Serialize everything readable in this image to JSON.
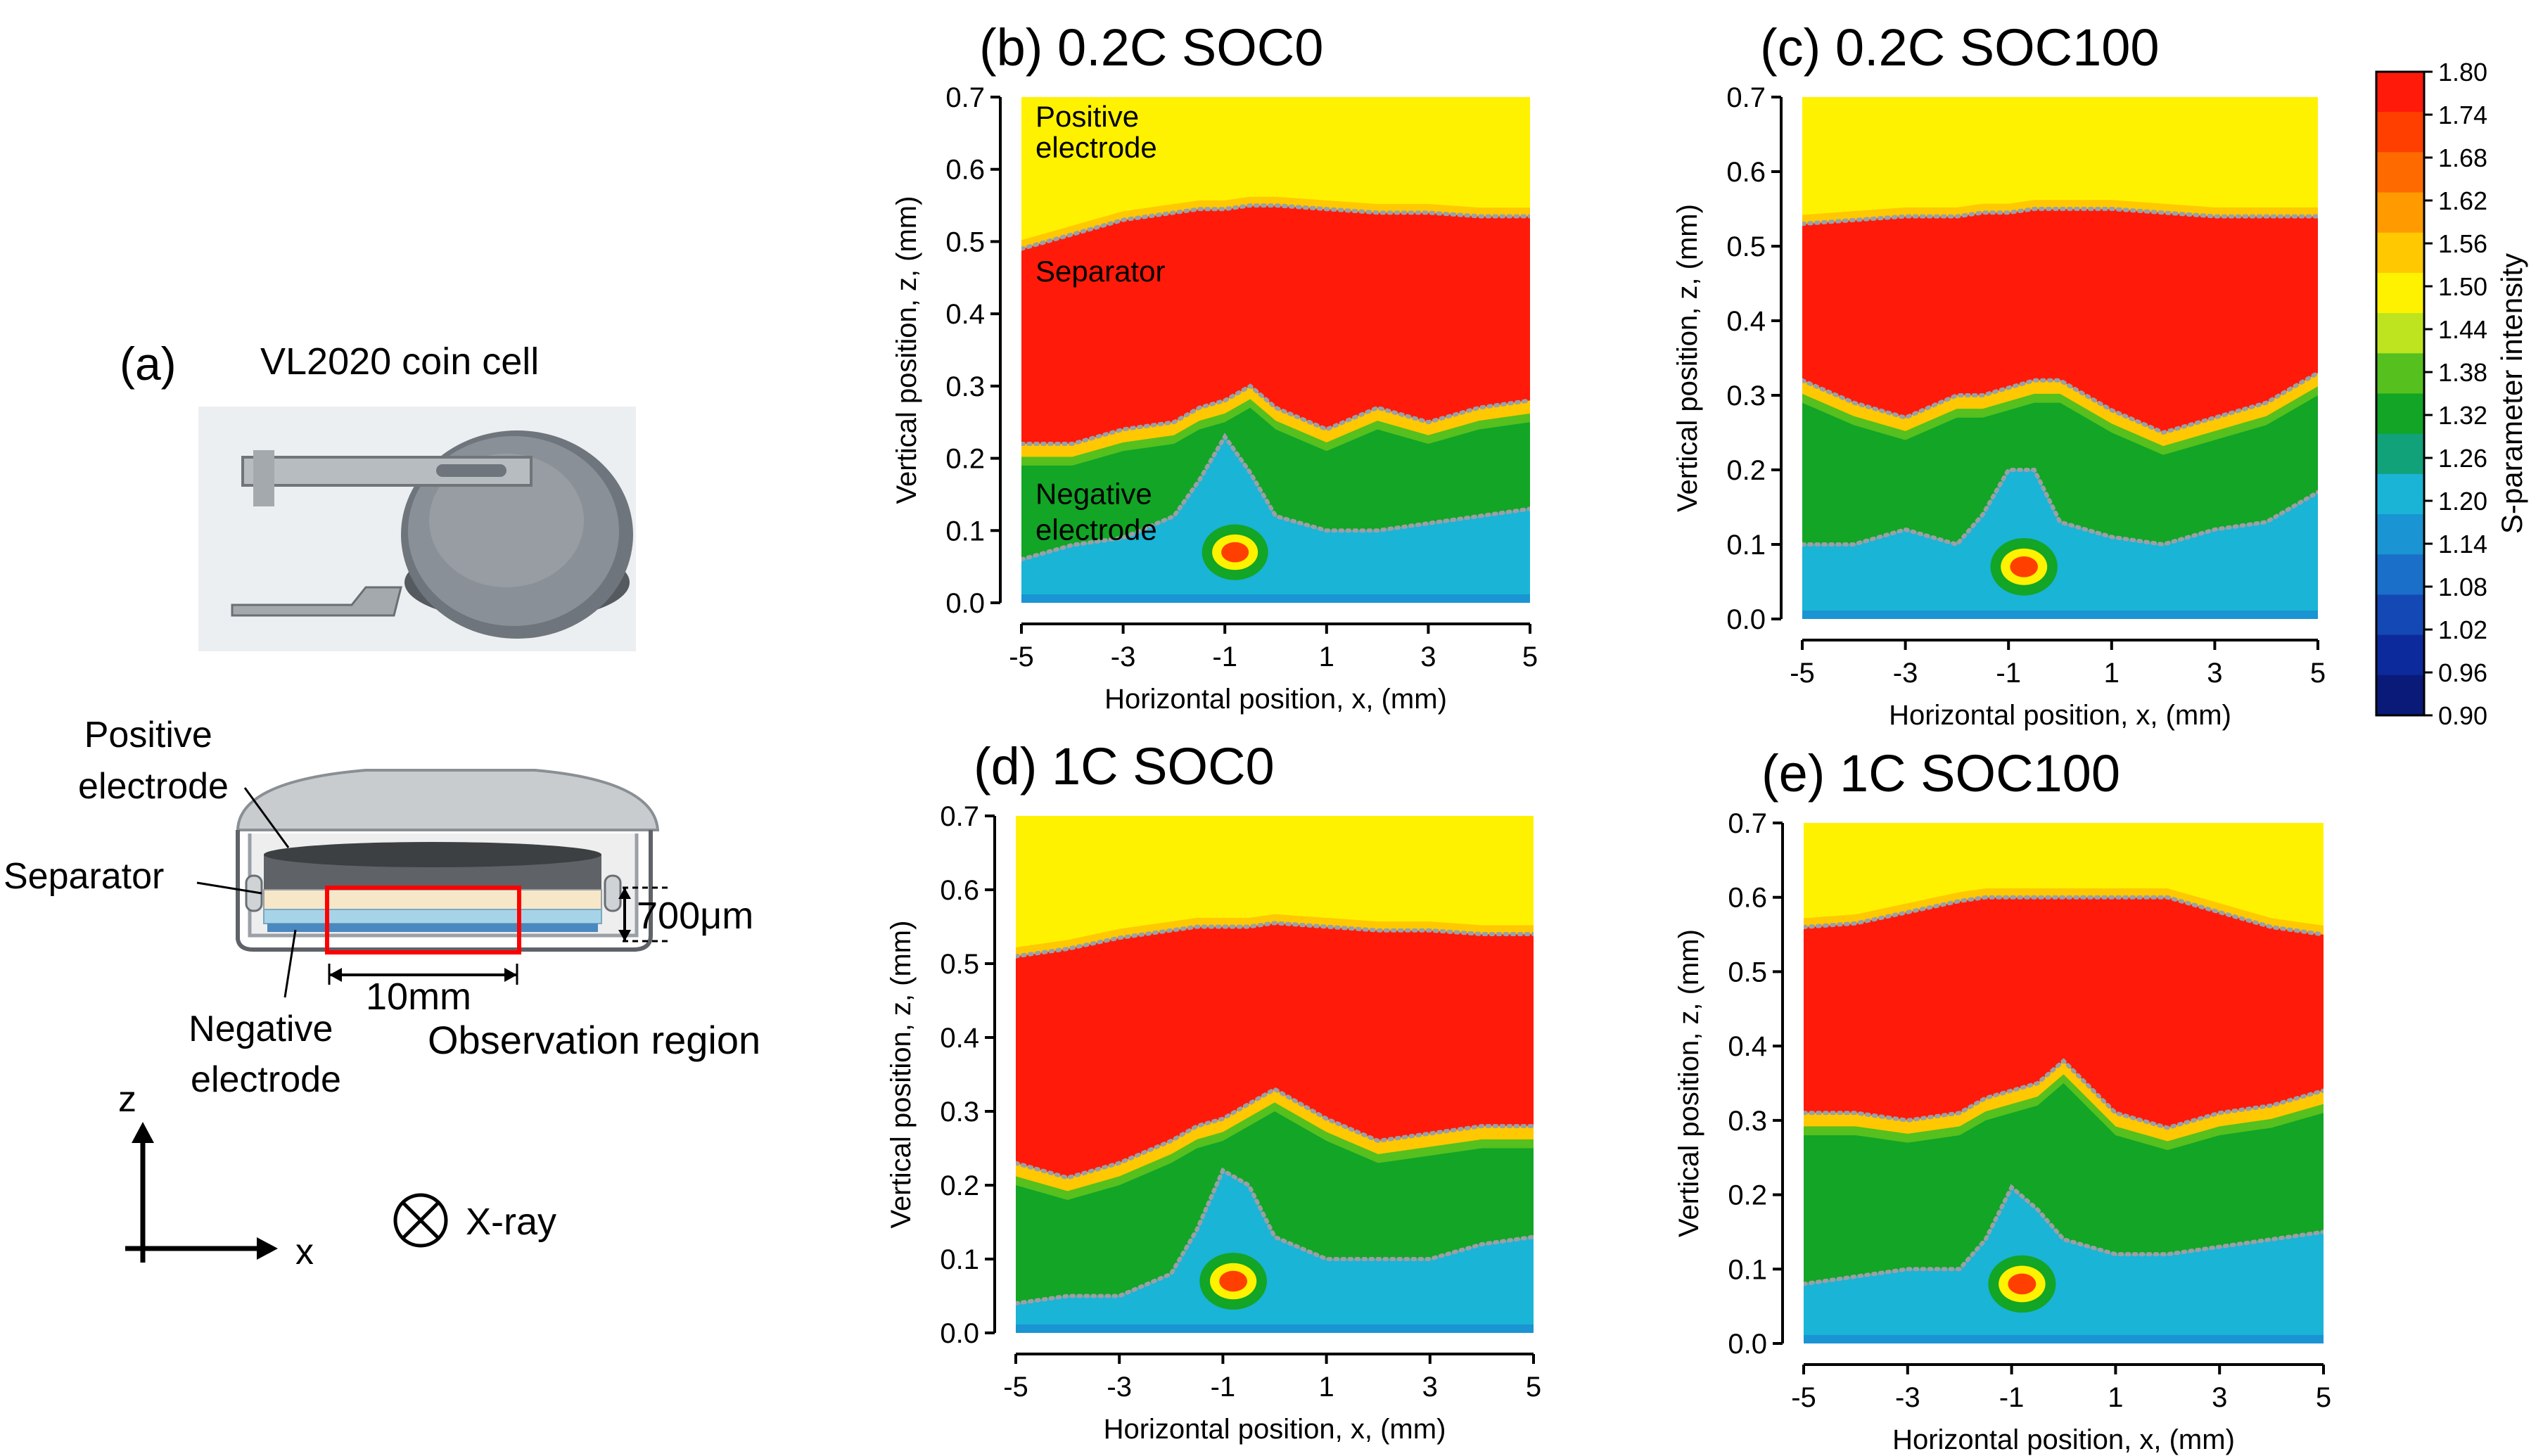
{
  "panel_a": {
    "label": "(a)",
    "title": "VL2020 coin cell",
    "labels": {
      "positive_electrode": [
        "Positive",
        "electrode"
      ],
      "separator": "Separator",
      "negative_electrode": [
        "Negative",
        "electrode"
      ],
      "height": "700μm",
      "width": "10mm",
      "observation_region": "Observation region",
      "axis_z": "z",
      "axis_x": "x",
      "xray": "X-ray"
    },
    "colors": {
      "observation_region": "#ff0000"
    }
  },
  "chart_data": [
    {
      "id": "b",
      "type": "heatmap",
      "title": "(b) 0.2C SOC0",
      "xlabel": "Horizontal position, x, (mm)",
      "ylabel": "Vertical position, z, (mm)",
      "xlim": [
        -5,
        5
      ],
      "ylim": [
        0,
        0.7
      ],
      "xticks": [
        "-5",
        "-3",
        "-1",
        "1",
        "3",
        "5"
      ],
      "yticks": [
        "0.0",
        "0.1",
        "0.2",
        "0.3",
        "0.4",
        "0.5",
        "0.6",
        "0.7"
      ],
      "x": [
        -5,
        -4,
        -3,
        -2,
        -1.5,
        -1,
        -0.5,
        0,
        1,
        2,
        3,
        4,
        5
      ],
      "boundary_top": [
        0.49,
        0.51,
        0.53,
        0.54,
        0.545,
        0.545,
        0.55,
        0.55,
        0.545,
        0.54,
        0.54,
        0.535,
        0.535
      ],
      "boundary_bottom": [
        0.22,
        0.22,
        0.24,
        0.25,
        0.27,
        0.28,
        0.3,
        0.27,
        0.24,
        0.27,
        0.25,
        0.27,
        0.28
      ],
      "neg_top": [
        0.06,
        0.08,
        0.09,
        0.12,
        0.17,
        0.23,
        0.18,
        0.12,
        0.1,
        0.1,
        0.11,
        0.12,
        0.13
      ],
      "hotspot": {
        "x": -0.8,
        "z": 0.07,
        "value": 1.77
      },
      "annotations": {
        "positive": [
          "Positive",
          "electrode"
        ],
        "separator": "Separator",
        "negative": [
          "Negative",
          "electrode"
        ]
      }
    },
    {
      "id": "c",
      "type": "heatmap",
      "title": "(c) 0.2C SOC100",
      "xlabel": "Horizontal position, x, (mm)",
      "ylabel": "Vertical position, z, (mm)",
      "xlim": [
        -5,
        5
      ],
      "ylim": [
        0,
        0.7
      ],
      "xticks": [
        "-5",
        "-3",
        "-1",
        "1",
        "3",
        "5"
      ],
      "yticks": [
        "0.0",
        "0.1",
        "0.2",
        "0.3",
        "0.4",
        "0.5",
        "0.6",
        "0.7"
      ],
      "x": [
        -5,
        -4,
        -3,
        -2,
        -1.5,
        -1,
        -0.5,
        0,
        1,
        2,
        3,
        4,
        5
      ],
      "boundary_top": [
        0.53,
        0.535,
        0.54,
        0.54,
        0.545,
        0.545,
        0.55,
        0.55,
        0.55,
        0.545,
        0.54,
        0.54,
        0.54
      ],
      "boundary_bottom": [
        0.32,
        0.29,
        0.27,
        0.3,
        0.3,
        0.31,
        0.32,
        0.32,
        0.28,
        0.25,
        0.27,
        0.29,
        0.33
      ],
      "neg_top": [
        0.1,
        0.1,
        0.12,
        0.1,
        0.14,
        0.2,
        0.2,
        0.13,
        0.11,
        0.1,
        0.12,
        0.13,
        0.17
      ],
      "hotspot": {
        "x": -0.7,
        "z": 0.07,
        "value": 1.77
      }
    },
    {
      "id": "d",
      "type": "heatmap",
      "title": "(d) 1C SOC0",
      "xlabel": "Horizontal position, x, (mm)",
      "ylabel": "Vertical position, z, (mm)",
      "xlim": [
        -5,
        5
      ],
      "ylim": [
        0,
        0.7
      ],
      "xticks": [
        "-5",
        "-3",
        "-1",
        "1",
        "3",
        "5"
      ],
      "yticks": [
        "0.0",
        "0.1",
        "0.2",
        "0.3",
        "0.4",
        "0.5",
        "0.6",
        "0.7"
      ],
      "x": [
        -5,
        -4,
        -3,
        -2,
        -1.5,
        -1,
        -0.5,
        0,
        1,
        2,
        3,
        4,
        5
      ],
      "boundary_top": [
        0.51,
        0.52,
        0.535,
        0.545,
        0.55,
        0.55,
        0.55,
        0.555,
        0.55,
        0.545,
        0.545,
        0.54,
        0.54
      ],
      "boundary_bottom": [
        0.23,
        0.21,
        0.23,
        0.26,
        0.28,
        0.29,
        0.31,
        0.33,
        0.29,
        0.26,
        0.27,
        0.28,
        0.28
      ],
      "neg_top": [
        0.04,
        0.05,
        0.05,
        0.08,
        0.14,
        0.22,
        0.2,
        0.13,
        0.1,
        0.1,
        0.1,
        0.12,
        0.13
      ],
      "hotspot": {
        "x": -0.8,
        "z": 0.07,
        "value": 1.77
      }
    },
    {
      "id": "e",
      "type": "heatmap",
      "title": "(e) 1C SOC100",
      "xlabel": "Horizontal position, x, (mm)",
      "ylabel": "Vertical position, z, (mm)",
      "xlim": [
        -5,
        5
      ],
      "ylim": [
        0,
        0.7
      ],
      "xticks": [
        "-5",
        "-3",
        "-1",
        "1",
        "3",
        "5"
      ],
      "yticks": [
        "0.0",
        "0.1",
        "0.2",
        "0.3",
        "0.4",
        "0.5",
        "0.6",
        "0.7"
      ],
      "x": [
        -5,
        -4,
        -3,
        -2,
        -1.5,
        -1,
        -0.5,
        0,
        1,
        2,
        3,
        4,
        5
      ],
      "boundary_top": [
        0.56,
        0.565,
        0.58,
        0.595,
        0.6,
        0.6,
        0.6,
        0.6,
        0.6,
        0.6,
        0.58,
        0.56,
        0.55
      ],
      "boundary_bottom": [
        0.31,
        0.31,
        0.3,
        0.31,
        0.33,
        0.34,
        0.35,
        0.38,
        0.31,
        0.29,
        0.31,
        0.32,
        0.34
      ],
      "neg_top": [
        0.08,
        0.09,
        0.1,
        0.1,
        0.14,
        0.21,
        0.18,
        0.14,
        0.12,
        0.12,
        0.13,
        0.14,
        0.15
      ],
      "hotspot": {
        "x": -0.8,
        "z": 0.08,
        "value": 1.77
      }
    }
  ],
  "colorbar": {
    "label": "S-parameter intensity",
    "ticks": [
      "1.80",
      "1.74",
      "1.68",
      "1.62",
      "1.56",
      "1.50",
      "1.44",
      "1.38",
      "1.32",
      "1.26",
      "1.20",
      "1.14",
      "1.08",
      "1.02",
      "0.96",
      "0.90"
    ],
    "colors": [
      "#ff1a0a",
      "#ff3f00",
      "#ff6a00",
      "#ff9a00",
      "#ffc800",
      "#fff200",
      "#bde41e",
      "#55c01e",
      "#12a526",
      "#12a27a",
      "#1ab4d6",
      "#1a94d2",
      "#1a6fc8",
      "#1448b4",
      "#0c2a9c",
      "#091a78"
    ]
  },
  "palette": {
    "positive": "#fff200",
    "separator": "#ff1a0a",
    "boundary": "#ffc800",
    "negative": "#12a526",
    "negative_light": "#55c01e",
    "bottom": "#1ab4d6",
    "bottom_dark": "#1a94d2",
    "hotspot_core": "#ff3f00",
    "hotspot_ring": "#fff200",
    "dotted": "#9aa0a6"
  }
}
